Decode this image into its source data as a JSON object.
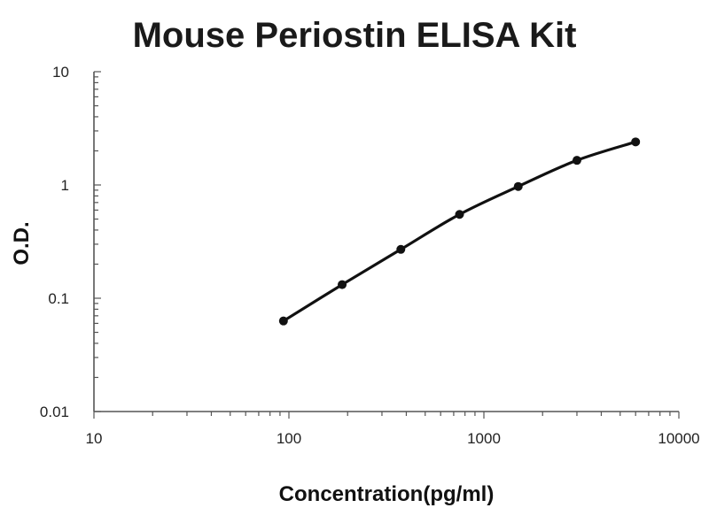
{
  "chart_data": {
    "type": "line",
    "title": "Mouse Periostin ELISA Kit",
    "xlabel": "Concentration(pg/ml)",
    "ylabel": "O.D.",
    "x_scale": "log",
    "y_scale": "log",
    "xlim": [
      10,
      10000
    ],
    "ylim": [
      0.01,
      10
    ],
    "x_ticks": [
      10,
      100,
      1000,
      10000
    ],
    "x_tick_labels": [
      "10",
      "100",
      "1000",
      "10000"
    ],
    "y_ticks": [
      0.01,
      0.1,
      1,
      10
    ],
    "y_tick_labels": [
      "0.01",
      "0.1",
      "1",
      "10"
    ],
    "grid": false,
    "legend": "none",
    "series": [
      {
        "x": [
          93.75,
          187.5,
          375,
          750,
          1500,
          3000,
          6000
        ],
        "y": [
          0.063,
          0.132,
          0.27,
          0.55,
          0.97,
          1.65,
          2.4
        ]
      }
    ],
    "colors": {
      "line": "#111111",
      "axis": "#555555",
      "marker": "#111111"
    }
  }
}
